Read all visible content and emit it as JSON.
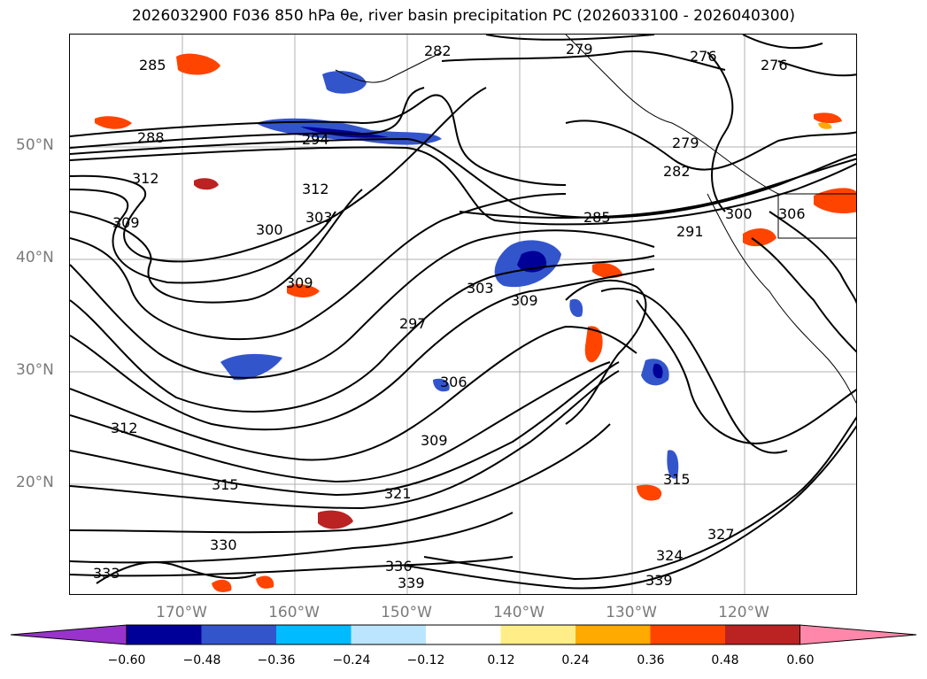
{
  "title": "2026032900 F036 850 hPa θe, river basin precipitation PC (2026033100 - 2026040300)",
  "map": {
    "projection": "PlateCarree",
    "extent_lon": [
      -180,
      -110
    ],
    "extent_lat": [
      10,
      60
    ],
    "lat_ticks": [
      {
        "value": 50,
        "label": "50°N"
      },
      {
        "value": 40,
        "label": "40°N"
      },
      {
        "value": 30,
        "label": "30°N"
      },
      {
        "value": 20,
        "label": "20°N"
      }
    ],
    "lon_ticks": [
      {
        "value": -170,
        "label": "170°W"
      },
      {
        "value": -160,
        "label": "160°W"
      },
      {
        "value": -150,
        "label": "150°W"
      },
      {
        "value": -140,
        "label": "140°W"
      },
      {
        "value": -130,
        "label": "130°W"
      },
      {
        "value": -120,
        "label": "120°W"
      }
    ],
    "grid": true,
    "contour_field": "850 hPa theta-e",
    "contour_labels": [
      "285",
      "288",
      "312",
      "309",
      "312",
      "303",
      "300",
      "309",
      "297",
      "303",
      "309",
      "306",
      "309",
      "312",
      "315",
      "321",
      "330",
      "333",
      "336",
      "339",
      "282",
      "279",
      "276",
      "276",
      "279",
      "282",
      "285",
      "291",
      "300",
      "306",
      "315",
      "324",
      "327",
      "339",
      "294"
    ]
  },
  "colorbar": {
    "ticks": [
      "−0.60",
      "−0.48",
      "−0.36",
      "−0.24",
      "−0.12",
      "0.12",
      "0.24",
      "0.36",
      "0.48",
      "0.60"
    ],
    "colors": [
      "#9933cc",
      "#000099",
      "#3355cc",
      "#00bbff",
      "#bbe5ff",
      "#ffffff",
      "#ffee88",
      "#ffaa00",
      "#ff4400",
      "#bb2222",
      "#ff88aa"
    ],
    "extend": "both"
  }
}
